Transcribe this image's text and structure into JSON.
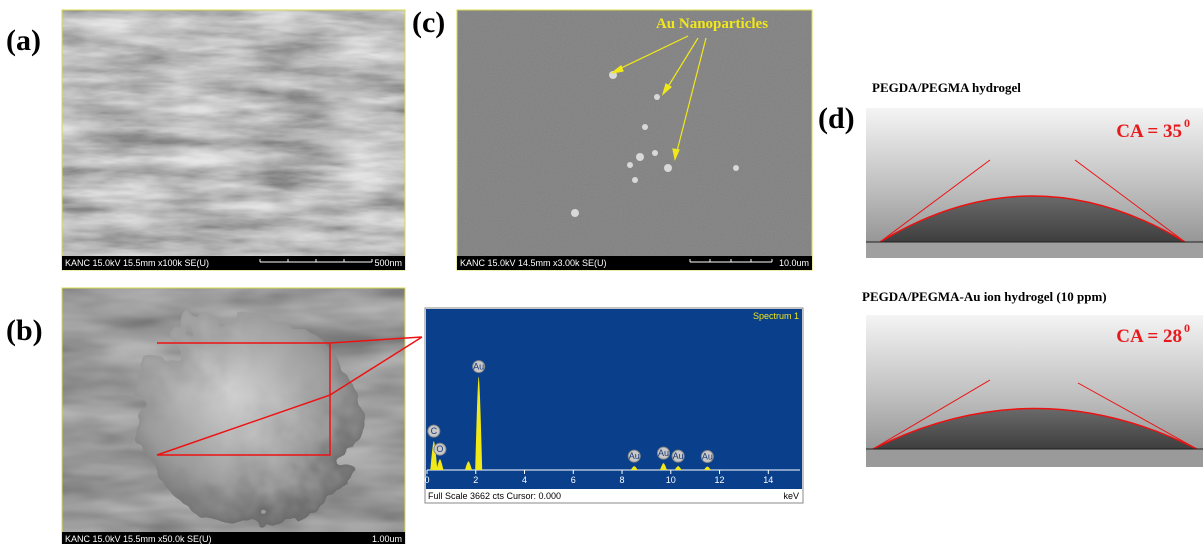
{
  "panels": {
    "a": {
      "label": "(a)",
      "scale_info": "KANC 15.0kV 15.5mm x100k SE(U)",
      "scale_bar": "500nm"
    },
    "b": {
      "label": "(b)",
      "scale_info": "KANC 15.0kV 15.5mm x50.0k SE(U)",
      "scale_bar": "1.00um"
    },
    "c": {
      "label": "(c)",
      "scale_info": "KANC 15.0kV 14.5mm x3.00k SE(U)",
      "scale_bar": "10.0um",
      "annotation": "Au Nanoparticles"
    },
    "d": {
      "label": "(d)",
      "top": {
        "caption": "PEGDA/PEGMA hydrogel",
        "angle": {
          "text": "CA = 35",
          "sup": "0"
        }
      },
      "bottom": {
        "caption": "PEGDA/PEGMA-Au ion hydrogel (10 ppm)",
        "angle": {
          "text": "CA = 28",
          "sup": "0"
        }
      }
    }
  },
  "spectrum": {
    "title": "Spectrum 1",
    "footer": "Full Scale 3662 cts Cursor: 0.000",
    "x_label": "keV",
    "xlim": [
      0,
      15.3
    ],
    "ylim": [
      0,
      3662
    ],
    "xticks": [
      0,
      2,
      4,
      6,
      8,
      10,
      12,
      14
    ],
    "peaks": [
      {
        "label": "C",
        "kev": 0.28,
        "height": 670
      },
      {
        "label": "O",
        "kev": 0.53,
        "height": 250
      },
      {
        "label": null,
        "kev": 1.7,
        "height": 200
      },
      {
        "label": "Au",
        "kev": 2.12,
        "height": 2165
      },
      {
        "label": "Au",
        "kev": 8.5,
        "height": 90
      },
      {
        "label": "Au",
        "kev": 9.7,
        "height": 160
      },
      {
        "label": "Au",
        "kev": 10.3,
        "height": 90
      },
      {
        "label": "Au",
        "kev": 11.5,
        "height": 80
      }
    ]
  }
}
